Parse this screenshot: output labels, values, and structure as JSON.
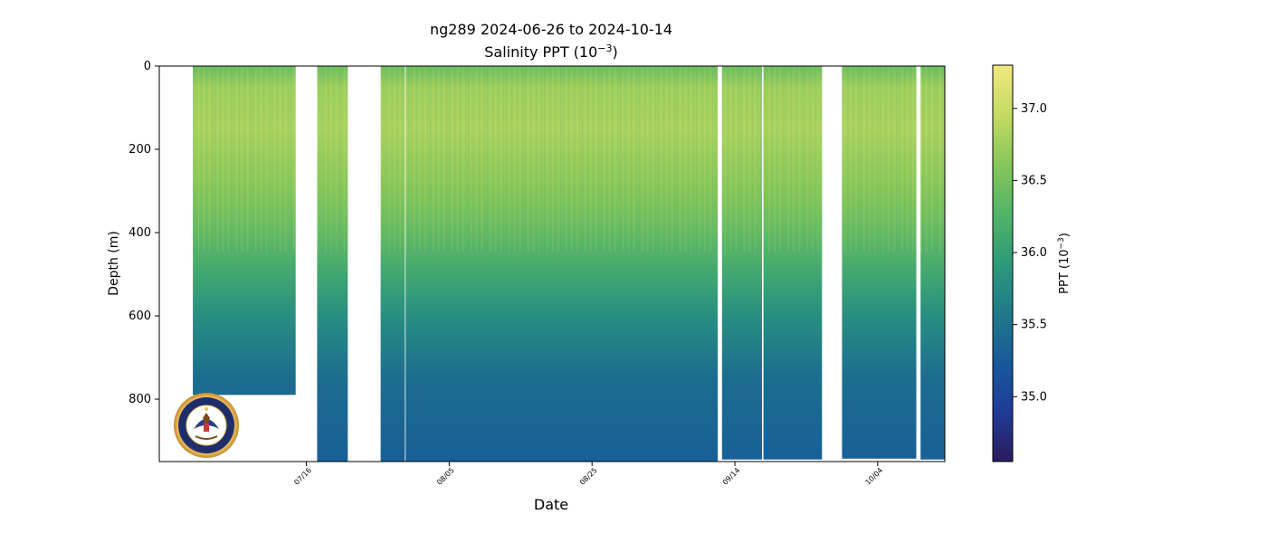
{
  "chart_data": {
    "type": "heatmap",
    "title": "ng289 2024-06-26 to 2024-10-14",
    "subtitle": "Salinity PPT (10",
    "subtitle_exponent": "−3",
    "subtitle_suffix": ")",
    "xlabel": "Date",
    "ylabel": "Depth (m)",
    "ylim": [
      950,
      0
    ],
    "y_ticks": [
      0,
      200,
      400,
      600,
      800
    ],
    "x_range_days": [
      -20.6,
      89.4
    ],
    "x_ticks": [
      {
        "label": "07/16",
        "day": 0
      },
      {
        "label": "08/05",
        "day": 20
      },
      {
        "label": "08/25",
        "day": 40
      },
      {
        "label": "09/14",
        "day": 60
      },
      {
        "label": "10/04",
        "day": 80
      }
    ],
    "colorbar": {
      "label": "PPT (10",
      "label_exponent": "−3",
      "label_suffix": ")",
      "range": [
        34.55,
        37.3
      ],
      "ticks": [
        35.0,
        35.5,
        36.0,
        36.5,
        37.0
      ],
      "colormap": [
        "#2a1a5e",
        "#1f3c97",
        "#17599a",
        "#1f7a8a",
        "#2d9a7a",
        "#52b468",
        "#86c75a",
        "#c4db62",
        "#f2e87d"
      ]
    },
    "segments": [
      {
        "start_day": -15.9,
        "end_day": -1.5,
        "max_depth": 790
      },
      {
        "start_day": 1.5,
        "end_day": 5.8,
        "max_depth": 950
      },
      {
        "start_day": 10.4,
        "end_day": 13.8,
        "max_depth": 950
      },
      {
        "start_day": 13.9,
        "end_day": 57.6,
        "max_depth": 950
      },
      {
        "start_day": 58.2,
        "end_day": 63.8,
        "max_depth": 945
      },
      {
        "start_day": 64.0,
        "end_day": 72.2,
        "max_depth": 945
      },
      {
        "start_day": 75.0,
        "end_day": 85.4,
        "max_depth": 943
      },
      {
        "start_day": 86.0,
        "end_day": 89.6,
        "max_depth": 945
      }
    ],
    "profile": [
      {
        "depth": 0,
        "value": 36.45
      },
      {
        "depth": 50,
        "value": 36.75
      },
      {
        "depth": 150,
        "value": 36.82
      },
      {
        "depth": 300,
        "value": 36.62
      },
      {
        "depth": 400,
        "value": 36.4
      },
      {
        "depth": 500,
        "value": 36.1
      },
      {
        "depth": 600,
        "value": 35.8
      },
      {
        "depth": 750,
        "value": 35.45
      },
      {
        "depth": 950,
        "value": 35.3
      }
    ]
  },
  "logo": {
    "name": "United States Navy seal",
    "text_top": "UNITED STATES",
    "text_bottom": "NAVY"
  }
}
